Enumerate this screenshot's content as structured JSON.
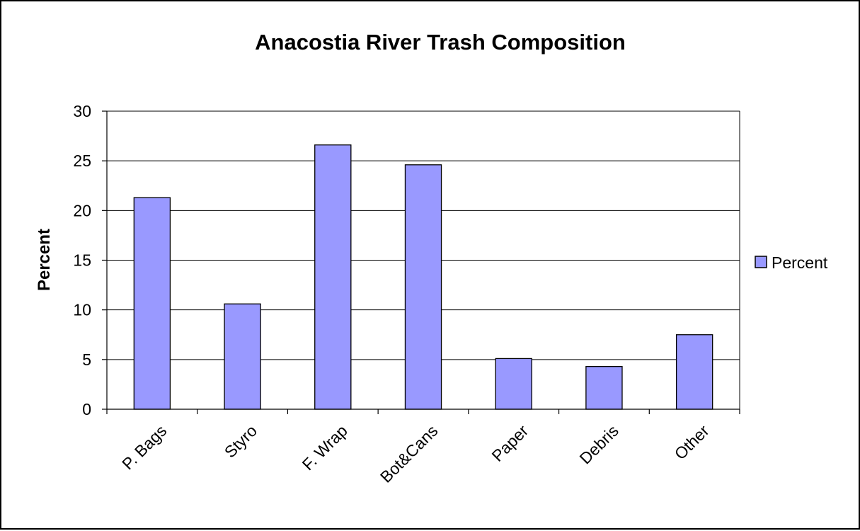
{
  "chart_data": {
    "type": "bar",
    "title": "Anacostia River Trash Composition",
    "xlabel": "",
    "ylabel": "Percent",
    "categories": [
      "P. Bags",
      "Styro",
      "F. Wrap",
      "Bot&Cans",
      "Paper",
      "Debris",
      "Other"
    ],
    "series": [
      {
        "name": "Percent",
        "values": [
          21.3,
          10.6,
          26.6,
          24.6,
          5.1,
          4.3,
          7.5
        ]
      }
    ],
    "ylim": [
      0,
      30
    ],
    "yticks": [
      "0",
      "5",
      "10",
      "15",
      "20",
      "25",
      "30"
    ],
    "grid": true,
    "legend_position": "right",
    "colors": {
      "bar": "#9999ff",
      "bar_stroke": "#000000",
      "grid": "#000000",
      "background": "#ffffff"
    }
  }
}
